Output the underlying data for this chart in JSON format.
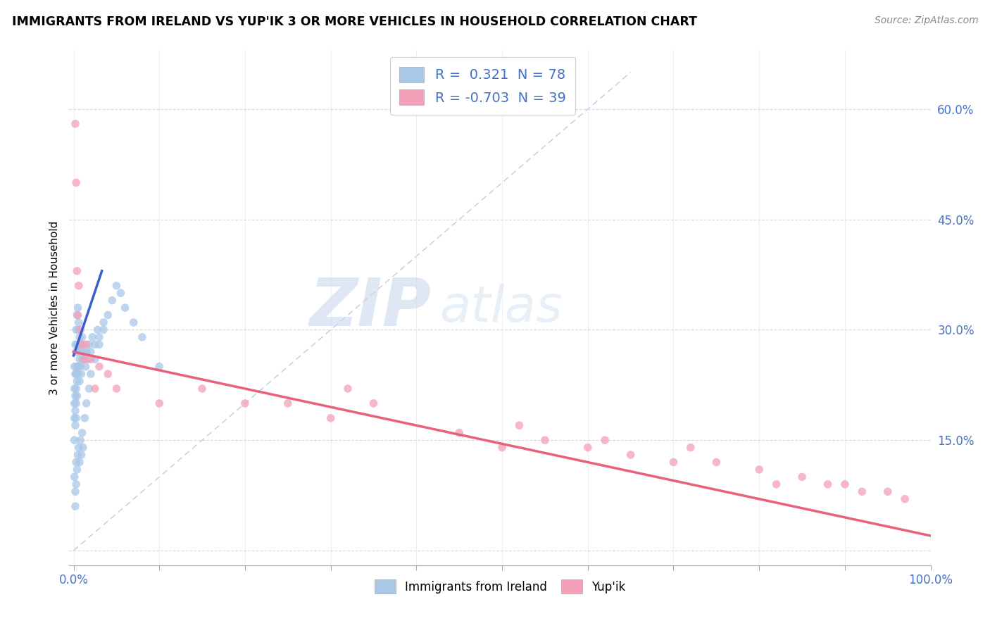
{
  "title": "IMMIGRANTS FROM IRELAND VS YUP'IK 3 OR MORE VEHICLES IN HOUSEHOLD CORRELATION CHART",
  "source": "Source: ZipAtlas.com",
  "ylabel": "3 or more Vehicles in Household",
  "xlim": [
    -0.005,
    1.0
  ],
  "ylim": [
    -0.02,
    0.68
  ],
  "x_ticks": [
    0.0,
    0.1,
    0.2,
    0.3,
    0.4,
    0.5,
    0.6,
    0.7,
    0.8,
    0.9,
    1.0
  ],
  "x_tick_labels": [
    "0.0%",
    "",
    "",
    "",
    "",
    "",
    "",
    "",
    "",
    "",
    "100.0%"
  ],
  "y_ticks": [
    0.0,
    0.15,
    0.3,
    0.45,
    0.6
  ],
  "y_tick_labels": [
    "",
    "15.0%",
    "30.0%",
    "45.0%",
    "60.0%"
  ],
  "color_blue": "#a8c8e8",
  "color_pink": "#f4a0b8",
  "line_blue": "#3a5fcd",
  "line_pink": "#e8607a",
  "diag_color": "#9ab8d8",
  "watermark_zip": "ZIP",
  "watermark_atlas": "atlas",
  "blue_x": [
    0.001,
    0.001,
    0.001,
    0.001,
    0.001,
    0.002,
    0.002,
    0.002,
    0.002,
    0.002,
    0.003,
    0.003,
    0.003,
    0.003,
    0.003,
    0.003,
    0.004,
    0.004,
    0.004,
    0.004,
    0.004,
    0.005,
    0.005,
    0.005,
    0.005,
    0.006,
    0.006,
    0.006,
    0.007,
    0.007,
    0.007,
    0.008,
    0.008,
    0.009,
    0.009,
    0.01,
    0.01,
    0.011,
    0.012,
    0.013,
    0.014,
    0.015,
    0.016,
    0.018,
    0.02,
    0.022,
    0.025,
    0.028,
    0.03,
    0.035,
    0.001,
    0.002,
    0.002,
    0.003,
    0.003,
    0.004,
    0.005,
    0.006,
    0.007,
    0.008,
    0.009,
    0.01,
    0.011,
    0.013,
    0.015,
    0.018,
    0.02,
    0.025,
    0.03,
    0.035,
    0.04,
    0.045,
    0.05,
    0.055,
    0.06,
    0.07,
    0.08,
    0.1
  ],
  "blue_y": [
    0.25,
    0.22,
    0.2,
    0.18,
    0.15,
    0.28,
    0.24,
    0.21,
    0.19,
    0.17,
    0.3,
    0.27,
    0.24,
    0.22,
    0.2,
    0.18,
    0.32,
    0.28,
    0.25,
    0.23,
    0.21,
    0.33,
    0.3,
    0.27,
    0.24,
    0.31,
    0.28,
    0.25,
    0.29,
    0.26,
    0.23,
    0.28,
    0.25,
    0.27,
    0.24,
    0.29,
    0.26,
    0.28,
    0.27,
    0.26,
    0.25,
    0.27,
    0.26,
    0.28,
    0.27,
    0.29,
    0.28,
    0.3,
    0.29,
    0.31,
    0.1,
    0.08,
    0.06,
    0.12,
    0.09,
    0.11,
    0.13,
    0.14,
    0.12,
    0.15,
    0.13,
    0.16,
    0.14,
    0.18,
    0.2,
    0.22,
    0.24,
    0.26,
    0.28,
    0.3,
    0.32,
    0.34,
    0.36,
    0.35,
    0.33,
    0.31,
    0.29,
    0.25
  ],
  "pink_x": [
    0.002,
    0.003,
    0.004,
    0.005,
    0.006,
    0.008,
    0.01,
    0.012,
    0.015,
    0.02,
    0.025,
    0.03,
    0.04,
    0.05,
    0.1,
    0.15,
    0.2,
    0.25,
    0.3,
    0.32,
    0.35,
    0.45,
    0.5,
    0.52,
    0.55,
    0.6,
    0.62,
    0.65,
    0.7,
    0.72,
    0.75,
    0.8,
    0.82,
    0.85,
    0.88,
    0.9,
    0.92,
    0.95,
    0.97
  ],
  "pink_y": [
    0.58,
    0.5,
    0.38,
    0.32,
    0.36,
    0.3,
    0.28,
    0.26,
    0.28,
    0.26,
    0.22,
    0.25,
    0.24,
    0.22,
    0.2,
    0.22,
    0.2,
    0.2,
    0.18,
    0.22,
    0.2,
    0.16,
    0.14,
    0.17,
    0.15,
    0.14,
    0.15,
    0.13,
    0.12,
    0.14,
    0.12,
    0.11,
    0.09,
    0.1,
    0.09,
    0.09,
    0.08,
    0.08,
    0.07
  ]
}
